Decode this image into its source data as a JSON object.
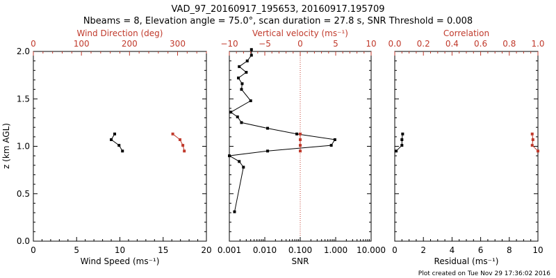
{
  "title_line1": "VAD_97_20160917_195653, 20160917.195709",
  "title_line2": "Nbeams = 8, Elevation angle = 75.0°, scan duration = 27.8 s, SNR Threshold = 0.008",
  "footer": "Plot created on Tue Nov 29 17:36:02 2016",
  "colors": {
    "primary": "#000000",
    "secondary": "#c0392b"
  },
  "chart_data": [
    {
      "type": "line",
      "ylabel": "z (km AGL)",
      "ylim": [
        0,
        2
      ],
      "y_ticks": [
        "0.0",
        "0.5",
        "1.0",
        "1.5",
        "2.0"
      ],
      "bottom_axis": {
        "label": "Wind Speed (ms⁻¹)",
        "lim": [
          0,
          20
        ],
        "ticks": [
          "0",
          "5",
          "10",
          "15",
          "20"
        ]
      },
      "top_axis": {
        "label": "Wind Direction (deg)",
        "lim": [
          0,
          360
        ],
        "ticks": [
          "0",
          "100",
          "200",
          "300"
        ]
      },
      "series": [
        {
          "axis": "bottom",
          "color": "#000000",
          "points": [
            [
              9.4,
              1.13
            ],
            [
              9.0,
              1.07
            ],
            [
              9.9,
              1.01
            ],
            [
              10.3,
              0.95
            ]
          ]
        },
        {
          "axis": "top",
          "color": "#c0392b",
          "points": [
            [
              290,
              1.13
            ],
            [
              305,
              1.07
            ],
            [
              311,
              1.01
            ],
            [
              314,
              0.95
            ]
          ]
        }
      ]
    },
    {
      "type": "line",
      "ylim": [
        0,
        2
      ],
      "bottom_axis": {
        "label": "SNR",
        "scale": "log",
        "lim": [
          0.001,
          10
        ],
        "ticks": [
          "0.001",
          "0.010",
          "0.100",
          "1.000",
          "10.000"
        ]
      },
      "top_axis": {
        "label": "Vertical velocity (ms⁻¹)",
        "lim": [
          -10,
          10
        ],
        "ticks": [
          "−10",
          "−5",
          "0",
          "5",
          "10"
        ]
      },
      "series": [
        {
          "axis": "bottom",
          "color": "#000000",
          "points": [
            [
              0.0014,
              0.31
            ],
            [
              0.0025,
              0.78
            ],
            [
              0.0019,
              0.84
            ],
            [
              0.001,
              0.9
            ],
            [
              0.012,
              0.95
            ],
            [
              0.75,
              1.01
            ],
            [
              0.95,
              1.07
            ],
            [
              0.08,
              1.13
            ],
            [
              0.012,
              1.19
            ],
            [
              0.0022,
              1.25
            ],
            [
              0.0017,
              1.31
            ],
            [
              0.0011,
              1.36
            ],
            [
              0.004,
              1.48
            ],
            [
              0.0022,
              1.6
            ],
            [
              0.0023,
              1.66
            ],
            [
              0.0018,
              1.72
            ],
            [
              0.003,
              1.78
            ],
            [
              0.0019,
              1.84
            ],
            [
              0.0032,
              1.9
            ],
            [
              0.0042,
              1.96
            ],
            [
              0.0042,
              2.02
            ]
          ]
        },
        {
          "axis": "top",
          "color": "#c0392b",
          "points": [
            [
              0,
              1.13
            ],
            [
              0,
              1.07
            ],
            [
              0,
              1.01
            ],
            [
              0,
              0.95
            ]
          ]
        }
      ],
      "reference_line": {
        "axis": "top",
        "value": 0,
        "style": "dotted",
        "color": "#c0392b"
      }
    },
    {
      "type": "line",
      "ylim": [
        0,
        2
      ],
      "bottom_axis": {
        "label": "Residual (ms⁻¹)",
        "lim": [
          0,
          10
        ],
        "ticks": [
          "0",
          "2",
          "4",
          "6",
          "8",
          "10"
        ]
      },
      "top_axis": {
        "label": "Correlation",
        "lim": [
          0,
          1
        ],
        "ticks": [
          "0.0",
          "0.2",
          "0.4",
          "0.6",
          "0.8",
          "1.0"
        ]
      },
      "series": [
        {
          "axis": "bottom",
          "color": "#000000",
          "points": [
            [
              0.55,
              1.13
            ],
            [
              0.5,
              1.07
            ],
            [
              0.5,
              1.01
            ],
            [
              0.1,
              0.95
            ]
          ]
        },
        {
          "axis": "top",
          "color": "#c0392b",
          "points": [
            [
              0.96,
              1.13
            ],
            [
              0.965,
              1.07
            ],
            [
              0.96,
              1.01
            ],
            [
              1.0,
              0.95
            ]
          ]
        }
      ]
    }
  ]
}
